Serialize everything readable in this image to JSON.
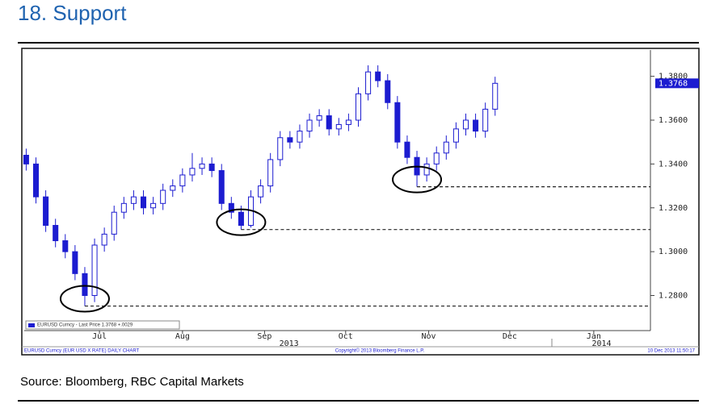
{
  "title": "18. Support",
  "source": "Source: Bloomberg, RBC Capital Markets",
  "chart_data": {
    "type": "candlestick",
    "color": "#1c1cd0",
    "categories": [
      null,
      null,
      null,
      null,
      null,
      null,
      null,
      null,
      null,
      null,
      null,
      null,
      null,
      null,
      null,
      null,
      null,
      null,
      null,
      null,
      null,
      null,
      null,
      null,
      null,
      null,
      null,
      null,
      null,
      null,
      null,
      null,
      null,
      null,
      null,
      null,
      null,
      null,
      null,
      null,
      null,
      null,
      null,
      null,
      null,
      null,
      null,
      null,
      null
    ],
    "open": [
      1.344,
      1.34,
      1.325,
      1.312,
      1.305,
      1.3,
      1.29,
      1.28,
      1.303,
      1.308,
      1.318,
      1.322,
      1.325,
      1.32,
      1.322,
      1.328,
      1.33,
      1.335,
      1.338,
      1.34,
      1.337,
      1.322,
      1.318,
      1.312,
      1.325,
      1.33,
      1.342,
      1.352,
      1.35,
      1.355,
      1.36,
      1.362,
      1.356,
      1.358,
      1.36,
      1.372,
      1.382,
      1.378,
      1.368,
      1.35,
      1.343,
      1.335,
      1.34,
      1.345,
      1.35,
      1.356,
      1.36,
      1.355,
      1.365
    ],
    "high": [
      1.347,
      1.343,
      1.328,
      1.315,
      1.308,
      1.303,
      1.293,
      1.306,
      1.311,
      1.321,
      1.325,
      1.328,
      1.328,
      1.325,
      1.331,
      1.333,
      1.338,
      1.345,
      1.343,
      1.343,
      1.34,
      1.325,
      1.321,
      1.328,
      1.333,
      1.345,
      1.355,
      1.355,
      1.358,
      1.363,
      1.365,
      1.365,
      1.361,
      1.363,
      1.375,
      1.385,
      1.385,
      1.381,
      1.371,
      1.353,
      1.346,
      1.343,
      1.348,
      1.353,
      1.359,
      1.363,
      1.363,
      1.368,
      1.3798
    ],
    "low": [
      1.337,
      1.322,
      1.309,
      1.302,
      1.297,
      1.287,
      1.2752,
      1.277,
      1.3,
      1.305,
      1.315,
      1.319,
      1.317,
      1.317,
      1.319,
      1.325,
      1.327,
      1.332,
      1.335,
      1.334,
      1.319,
      1.315,
      1.3101,
      1.311,
      1.322,
      1.327,
      1.339,
      1.347,
      1.347,
      1.352,
      1.357,
      1.353,
      1.353,
      1.355,
      1.357,
      1.369,
      1.375,
      1.365,
      1.347,
      1.34,
      1.3296,
      1.332,
      1.337,
      1.342,
      1.347,
      1.353,
      1.352,
      1.352,
      1.362
    ],
    "close": [
      1.34,
      1.325,
      1.312,
      1.305,
      1.3,
      1.29,
      1.28,
      1.303,
      1.308,
      1.318,
      1.322,
      1.325,
      1.32,
      1.322,
      1.328,
      1.33,
      1.335,
      1.338,
      1.34,
      1.337,
      1.322,
      1.318,
      1.312,
      1.325,
      1.33,
      1.342,
      1.352,
      1.35,
      1.355,
      1.36,
      1.362,
      1.356,
      1.358,
      1.36,
      1.372,
      1.382,
      1.378,
      1.368,
      1.35,
      1.343,
      1.335,
      1.34,
      1.345,
      1.35,
      1.356,
      1.36,
      1.355,
      1.365,
      1.3768
    ],
    "ylim": [
      1.264,
      1.392
    ],
    "yticks": [
      {
        "value": 1.28,
        "label": "1.2800"
      },
      {
        "value": 1.3,
        "label": "1.3000"
      },
      {
        "value": 1.32,
        "label": "1.3200"
      },
      {
        "value": 1.34,
        "label": "1.3400"
      },
      {
        "value": 1.36,
        "label": "1.3600"
      },
      {
        "value": 1.38,
        "label": "1.3800"
      }
    ],
    "xlim": [
      -0.2,
      63.9
    ],
    "xticks": [
      {
        "value": 7.5,
        "label": "Jul"
      },
      {
        "value": 16.0,
        "label": "Aug"
      },
      {
        "value": 24.4,
        "label": "Sep"
      },
      {
        "value": 32.7,
        "label": "Oct"
      },
      {
        "value": 41.2,
        "label": "Nov"
      },
      {
        "value": 49.5,
        "label": "Dec"
      },
      {
        "value": 58.1,
        "label": "Jan"
      }
    ],
    "year_labels": [
      {
        "value": 26.9,
        "label": "2013"
      },
      {
        "value": 58.9,
        "label": "2014"
      }
    ],
    "support_levels": [
      1.2752,
      1.3101,
      1.3296
    ],
    "legend_label": "EURUSD Curncy - Last Price 1.3768 +.0029",
    "legend": "bottom-left",
    "footer_left": "EURUSD Curncy (EUR USD X RATE) DAILY CHART",
    "footer_center": "Copyright© 2013 Bloomberg Finance L.P.",
    "footer_right": "10 Dec 2013 11:50:17"
  }
}
